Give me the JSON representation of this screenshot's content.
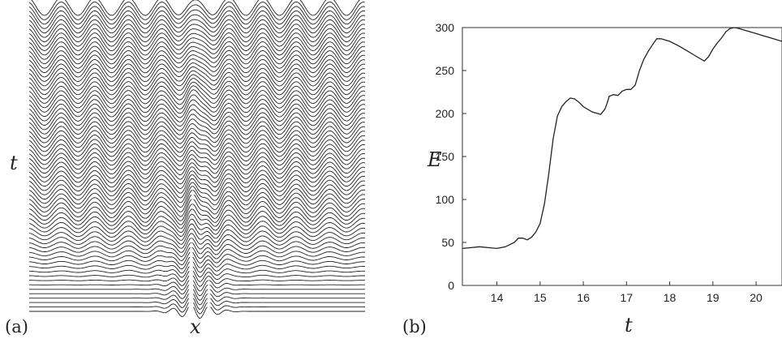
{
  "panel_a": {
    "tag": "(a)",
    "xlabel": "x",
    "ylabel": "t"
  },
  "panel_b": {
    "tag": "(b)",
    "xlabel": "t",
    "ylabel": "E"
  },
  "chart_data": [
    {
      "type": "line",
      "panel": "a",
      "description_type": "waterfall",
      "xlabel": "x",
      "ylabel": "t",
      "grid": false,
      "curves": 70,
      "wave_crests": 10
    },
    {
      "type": "line",
      "panel": "b",
      "xlabel": "t",
      "ylabel": "E",
      "xlim": [
        13.2,
        20.6
      ],
      "ylim": [
        0,
        300
      ],
      "xticks": [
        14,
        15,
        16,
        17,
        18,
        19,
        20
      ],
      "yticks": [
        0,
        50,
        100,
        150,
        200,
        250,
        300
      ],
      "grid": false,
      "series": [
        {
          "x": [
            13.2,
            13.4,
            13.6,
            13.8,
            14.0,
            14.2,
            14.4,
            14.5,
            14.6,
            14.7,
            14.8,
            14.9,
            15.0,
            15.1,
            15.2,
            15.3,
            15.4,
            15.5,
            15.6,
            15.7,
            15.8,
            15.9,
            16.0,
            16.2,
            16.4,
            16.5,
            16.55,
            16.6,
            16.7,
            16.8,
            16.9,
            17.0,
            17.1,
            17.2,
            17.3,
            17.4,
            17.5,
            17.6,
            17.7,
            17.8,
            18.0,
            18.2,
            18.4,
            18.6,
            18.8,
            18.9,
            19.0,
            19.1,
            19.2,
            19.3,
            19.4,
            19.5,
            19.6,
            19.8,
            20.0,
            20.2,
            20.4,
            20.6
          ],
          "values": [
            43,
            44,
            45,
            44,
            43,
            45,
            50,
            55,
            55,
            53,
            56,
            62,
            72,
            95,
            130,
            170,
            197,
            208,
            214,
            218,
            217,
            213,
            208,
            202,
            199,
            205,
            212,
            220,
            222,
            221,
            226,
            228,
            228,
            233,
            250,
            263,
            272,
            280,
            287,
            287,
            284,
            279,
            273,
            267,
            261,
            266,
            275,
            282,
            288,
            295,
            299,
            300,
            299,
            296,
            293,
            290,
            287,
            284
          ]
        }
      ]
    }
  ]
}
